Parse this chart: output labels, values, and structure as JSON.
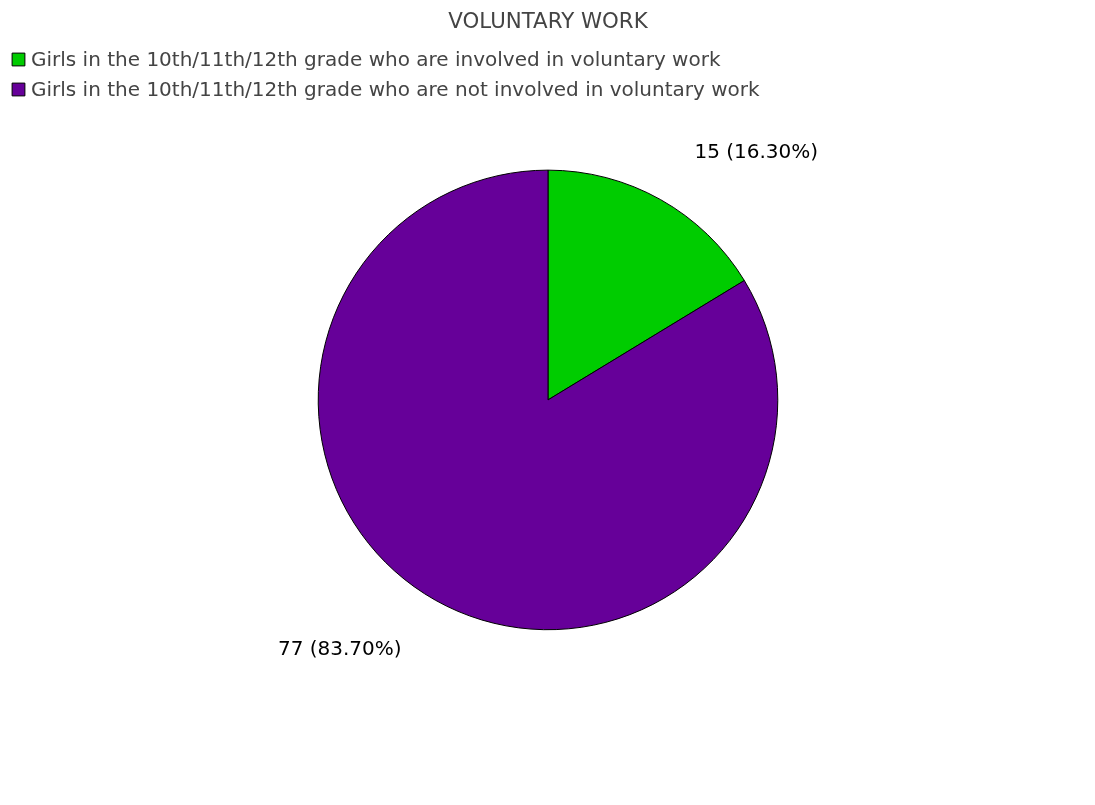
{
  "chart_data": {
    "type": "pie",
    "title": "VOLUNTARY WORK",
    "categories": [
      "Girls in the 10th/11th/12th grade who are involved in voluntary work",
      "Girls in the 10th/11th/12th grade who are not involved in voluntary work"
    ],
    "values": [
      15,
      77
    ],
    "colors": [
      "#00cc00",
      "#660099"
    ],
    "value_labels": [
      "15 (16.30%)",
      "77 (83.70%)"
    ],
    "legend": "top left"
  }
}
